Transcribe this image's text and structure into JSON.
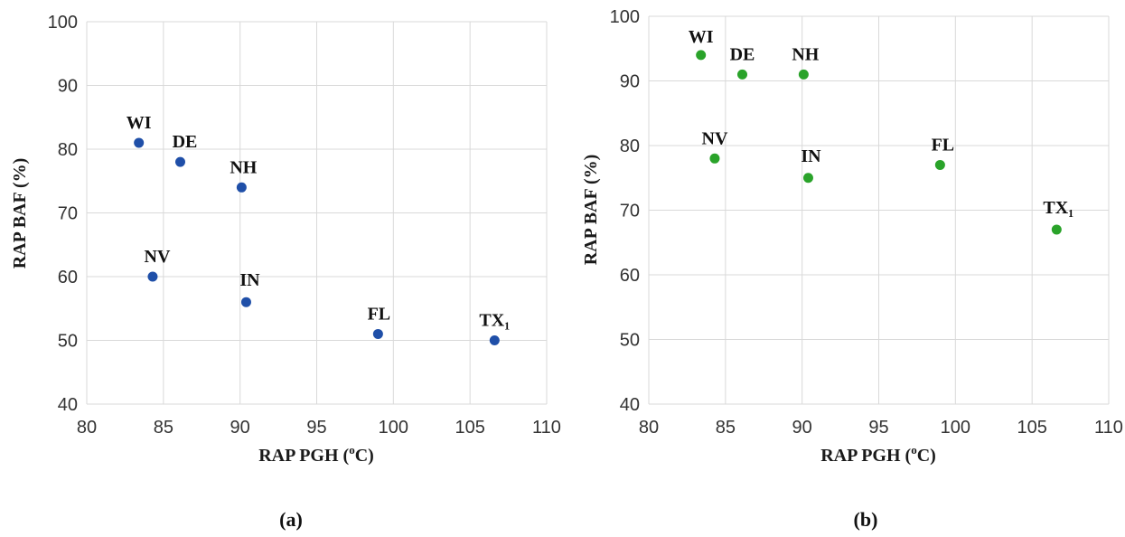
{
  "figure": {
    "captions": [
      "(a)",
      "(b)"
    ]
  },
  "chart_data": [
    {
      "type": "scatter",
      "title": "",
      "xlabel": {
        "prefix": "RAP PGH (",
        "sup": "o",
        "suffix": "C)"
      },
      "ylabel": "RAP BAF (%)",
      "xlim": [
        80,
        110
      ],
      "ylim": [
        40,
        100
      ],
      "xticks": [
        80,
        85,
        90,
        95,
        100,
        105,
        110
      ],
      "yticks": [
        40,
        50,
        60,
        70,
        80,
        90,
        100
      ],
      "grid": true,
      "legend": "none",
      "color": "#1f4fa8",
      "points": [
        {
          "label": "WI",
          "x": 83.4,
          "y": 81
        },
        {
          "label": "DE",
          "x": 86.1,
          "y": 78
        },
        {
          "label": "NH",
          "x": 90.1,
          "y": 74
        },
        {
          "label": "NV",
          "x": 84.3,
          "y": 60
        },
        {
          "label": "IN",
          "x": 90.4,
          "y": 56
        },
        {
          "label": "FL",
          "x": 99.0,
          "y": 51
        },
        {
          "label": "TX₁",
          "x": 106.6,
          "y": 50
        }
      ]
    },
    {
      "type": "scatter",
      "title": "",
      "xlabel": {
        "prefix": "RAP PGH (",
        "sup": "o",
        "suffix": "C)"
      },
      "ylabel": "RAP BAF (%)",
      "xlim": [
        80,
        110
      ],
      "ylim": [
        40,
        100
      ],
      "xticks": [
        80,
        85,
        90,
        95,
        100,
        105,
        110
      ],
      "yticks": [
        40,
        50,
        60,
        70,
        80,
        90,
        100
      ],
      "grid": true,
      "legend": "none",
      "color": "#2aa32a",
      "points": [
        {
          "label": "WI",
          "x": 83.4,
          "y": 94
        },
        {
          "label": "DE",
          "x": 86.1,
          "y": 91
        },
        {
          "label": "NH",
          "x": 90.1,
          "y": 91
        },
        {
          "label": "NV",
          "x": 84.3,
          "y": 78
        },
        {
          "label": "IN",
          "x": 90.4,
          "y": 75
        },
        {
          "label": "FL",
          "x": 99.0,
          "y": 77
        },
        {
          "label": "TX₁",
          "x": 106.6,
          "y": 67
        }
      ]
    }
  ]
}
